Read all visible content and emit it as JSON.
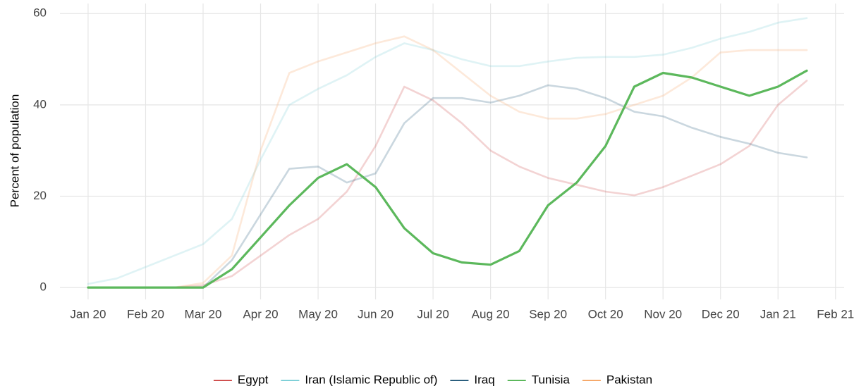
{
  "chart_data": {
    "type": "line",
    "y_label": "Percent of population",
    "x": [
      0,
      0.5,
      1,
      1.5,
      2,
      2.5,
      3,
      3.5,
      4,
      4.5,
      5,
      5.5,
      6,
      6.5,
      7,
      7.5,
      8,
      8.5,
      9,
      9.5,
      10,
      10.5,
      11,
      11.5,
      12,
      12.5
    ],
    "xlim": [
      -0.49,
      13.15
    ],
    "xticks": [
      {
        "value": 0,
        "label": "Jan 20"
      },
      {
        "value": 1,
        "label": "Feb 20"
      },
      {
        "value": 2,
        "label": "Mar 20"
      },
      {
        "value": 3,
        "label": "Apr 20"
      },
      {
        "value": 4,
        "label": "May 20"
      },
      {
        "value": 5,
        "label": "Jun 20"
      },
      {
        "value": 6,
        "label": "Jul 20"
      },
      {
        "value": 7,
        "label": "Aug 20"
      },
      {
        "value": 8,
        "label": "Sep 20"
      },
      {
        "value": 9,
        "label": "Oct 20"
      },
      {
        "value": 10,
        "label": "Nov 20"
      },
      {
        "value": 11,
        "label": "Dec 20"
      },
      {
        "value": 12,
        "label": "Jan 21"
      },
      {
        "value": 13,
        "label": "Feb 21"
      }
    ],
    "ylim": [
      -2.6,
      62.2
    ],
    "yticks": [
      0,
      20,
      40,
      60
    ],
    "grid": true,
    "legend": "bottom",
    "highlight": "Tunisia",
    "series": [
      {
        "name": "Egypt",
        "color": "#d0504f",
        "values": [
          0,
          0,
          0,
          0,
          0.5,
          2.5,
          7,
          11.5,
          15,
          21,
          31,
          44,
          41,
          36,
          30,
          26.5,
          24,
          22.5,
          21,
          20.2,
          22,
          24.5,
          27,
          31,
          40,
          45.3
        ]
      },
      {
        "name": "Iran (Islamic Republic of)",
        "color": "#7fd0d8",
        "values": [
          0.8,
          2,
          4.5,
          7,
          9.5,
          15,
          28,
          40,
          43.5,
          46.5,
          50.5,
          53.5,
          52,
          50,
          48.5,
          48.5,
          49.5,
          50.3,
          50.5,
          50.5,
          51,
          52.5,
          54.5,
          56,
          58,
          59
        ]
      },
      {
        "name": "Iraq",
        "color": "#2b5f7e",
        "values": [
          0,
          0,
          0,
          0,
          0,
          6,
          16,
          26,
          26.5,
          23,
          25,
          36,
          41.5,
          41.5,
          40.5,
          42,
          44.3,
          43.5,
          41.5,
          38.5,
          37.5,
          35,
          33,
          31.5,
          29.5,
          28.5
        ]
      },
      {
        "name": "Tunisia",
        "color": "#5cb85c",
        "values": [
          0,
          0,
          0,
          0,
          0,
          4,
          11,
          18,
          24,
          27,
          22,
          13,
          7.5,
          5.5,
          5,
          8,
          18,
          23,
          31,
          44,
          47,
          46,
          44,
          42,
          44,
          47.5
        ]
      },
      {
        "name": "Pakistan",
        "color": "#f6a96b",
        "values": [
          0,
          0,
          0,
          0,
          1,
          7,
          30,
          47,
          49.5,
          51.5,
          53.5,
          55,
          52,
          47,
          42,
          38.5,
          37,
          37,
          38,
          40,
          42,
          46,
          51.5,
          52,
          52,
          52
        ]
      }
    ]
  }
}
